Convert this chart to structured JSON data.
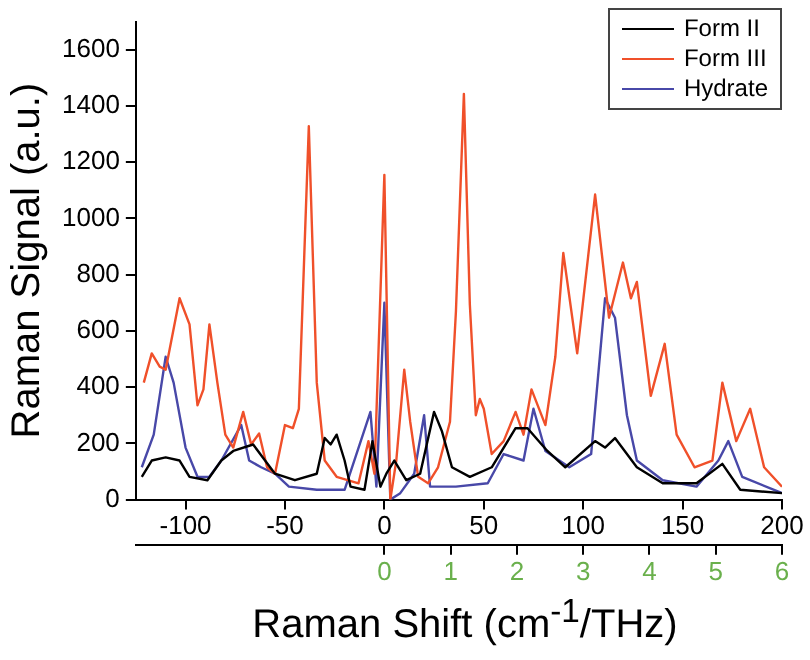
{
  "chart_data": {
    "type": "line",
    "xlabel": "Raman Shift (cm$^{-1}$/THz)",
    "ylabel": "Raman Signal (a.u.)",
    "xlim": [
      -125,
      200
    ],
    "xticks": [
      -100,
      -50,
      0,
      50,
      100,
      150,
      200
    ],
    "x2lim": [
      -3.75,
      6
    ],
    "x2ticks": [
      0,
      1,
      2,
      3,
      4,
      5,
      6
    ],
    "ylim": [
      0,
      1700
    ],
    "yticks": [
      0,
      200,
      400,
      600,
      800,
      1000,
      1200,
      1400,
      1600
    ],
    "legend": "top right",
    "series": [
      {
        "name": "Form II",
        "color": "#000000",
        "x": [
          -122,
          -117,
          -110,
          -103,
          -98,
          -89,
          -82,
          -76,
          -66,
          -60,
          -55,
          -45,
          -34,
          -30,
          -27,
          -24,
          -20,
          -17,
          -10,
          -6,
          -2,
          1,
          5,
          11,
          18,
          25,
          29,
          34,
          43,
          54,
          66,
          72,
          82,
          91,
          106,
          111,
          116,
          127,
          140,
          157,
          170,
          179,
          200
        ],
        "values": [
          81,
          139,
          150,
          139,
          81,
          69,
          139,
          173,
          196,
          139,
          92,
          69,
          92,
          219,
          196,
          231,
          139,
          46,
          35,
          208,
          46,
          92,
          139,
          69,
          92,
          312,
          242,
          115,
          81,
          115,
          254,
          254,
          173,
          115,
          208,
          185,
          219,
          115,
          58,
          58,
          127,
          35,
          23
        ]
      },
      {
        "name": "Form III",
        "color": "#f0502a",
        "x": [
          -121,
          -117,
          -113,
          -110,
          -103,
          -98,
          -94,
          -91,
          -88,
          -84,
          -80,
          -76,
          -71,
          -67,
          -63,
          -59,
          -55,
          -50,
          -46,
          -43,
          -38,
          -34,
          -30,
          -24,
          -13,
          -8,
          -5,
          0,
          3,
          6,
          10,
          13,
          17,
          22,
          27,
          33,
          36,
          40,
          43,
          46,
          48,
          50,
          54,
          60,
          66,
          70,
          74,
          81,
          86,
          90,
          97,
          106,
          113,
          120,
          124,
          127,
          134,
          141,
          147,
          156,
          165,
          170,
          177,
          184,
          191,
          200
        ],
        "values": [
          416,
          520,
          473,
          462,
          716,
          623,
          335,
          392,
          623,
          416,
          231,
          185,
          312,
          196,
          235,
          115,
          92,
          265,
          254,
          323,
          1328,
          416,
          139,
          81,
          58,
          208,
          92,
          1155,
          0,
          139,
          462,
          277,
          81,
          58,
          115,
          277,
          670,
          1443,
          693,
          300,
          358,
          323,
          162,
          208,
          312,
          231,
          392,
          265,
          508,
          877,
          520,
          1085,
          647,
          843,
          716,
          774,
          369,
          554,
          231,
          115,
          139,
          416,
          208,
          323,
          115,
          46
        ]
      },
      {
        "name": "Hydrate",
        "color": "#4848a8",
        "x": [
          -122,
          -116,
          -110,
          -106,
          -100,
          -94,
          -88,
          -82,
          -72,
          -68,
          -62,
          -55,
          -48,
          -34,
          -20,
          -7,
          -4,
          0,
          3,
          8,
          15,
          20,
          23,
          36,
          52,
          60,
          70,
          75,
          81,
          93,
          104,
          111,
          116,
          122,
          127,
          140,
          157,
          168,
          173,
          180,
          200
        ],
        "values": [
          115,
          231,
          508,
          416,
          185,
          81,
          81,
          139,
          265,
          139,
          115,
          92,
          46,
          35,
          35,
          312,
          46,
          700,
          0,
          23,
          92,
          300,
          46,
          46,
          58,
          162,
          139,
          323,
          173,
          115,
          162,
          716,
          647,
          300,
          139,
          69,
          46,
          139,
          208,
          81,
          23
        ]
      }
    ]
  }
}
